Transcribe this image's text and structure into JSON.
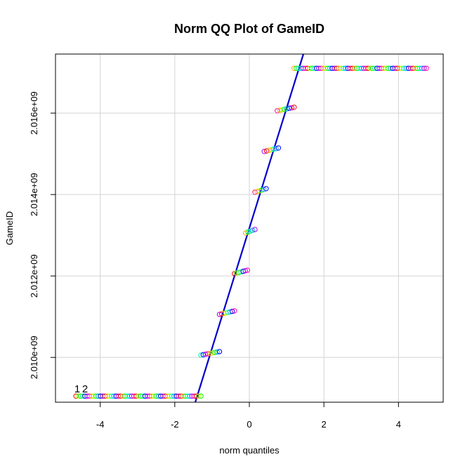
{
  "chart_data": {
    "type": "scatter",
    "title": "Norm QQ Plot of GameID",
    "xlabel": "norm quantiles",
    "ylabel": "GameID",
    "xlim": [
      -5.2,
      5.2
    ],
    "ylim": [
      2008900000,
      2017450000
    ],
    "x_ticks": [
      -4,
      -2,
      0,
      2,
      4
    ],
    "x_tick_labels": [
      "-4",
      "-2",
      "0",
      "2",
      "4"
    ],
    "y_ticks": [
      2010000000,
      2012000000,
      2014000000,
      2016000000
    ],
    "y_tick_labels": [
      "2.010e+09",
      "2.012e+09",
      "2.014e+09",
      "2.016e+09"
    ],
    "grid": true,
    "annotation": "1",
    "annotation2": "2",
    "reference_line": {
      "x1": -1.45,
      "y1": 2008900000,
      "x2": 1.45,
      "y2": 2017450000,
      "color": "#0000cc"
    },
    "point_palette": [
      "#ff0000",
      "#ffaa00",
      "#aaff00",
      "#00ff00",
      "#00ffaa",
      "#00aaff",
      "#0000ff",
      "#aa00ff",
      "#ff00aa"
    ],
    "steps": [
      {
        "y": 2009050000,
        "x_from": -4.65,
        "x_to": -1.3
      },
      {
        "y": 2010100000,
        "x_from": -1.3,
        "x_to": -0.8
      },
      {
        "y": 2011100000,
        "x_from": -0.8,
        "x_to": -0.4
      },
      {
        "y": 2012100000,
        "x_from": -0.4,
        "x_to": -0.05
      },
      {
        "y": 2013100000,
        "x_from": -0.1,
        "x_to": 0.15
      },
      {
        "y": 2014100000,
        "x_from": 0.15,
        "x_to": 0.45
      },
      {
        "y": 2015100000,
        "x_from": 0.4,
        "x_to": 0.78
      },
      {
        "y": 2016100000,
        "x_from": 0.75,
        "x_to": 1.2
      },
      {
        "y": 2017100000,
        "x_from": 1.2,
        "x_to": 4.75
      }
    ]
  }
}
